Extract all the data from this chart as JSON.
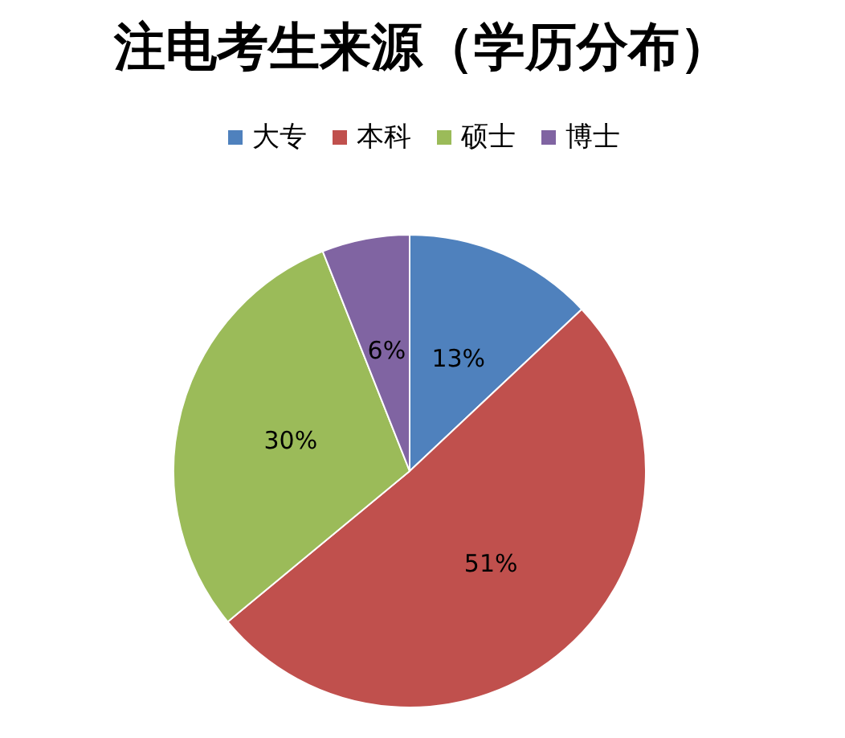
{
  "chart_data": {
    "type": "pie",
    "title": "注电考生来源（学历分布）",
    "categories": [
      "大专",
      "本科",
      "硕士",
      "博士"
    ],
    "values": [
      13,
      51,
      30,
      6
    ],
    "value_labels": [
      "13%",
      "51%",
      "30%",
      "6%"
    ],
    "colors": [
      "#4f81bd",
      "#c0504d",
      "#9bbb59",
      "#8064a2"
    ],
    "legend": "top"
  }
}
